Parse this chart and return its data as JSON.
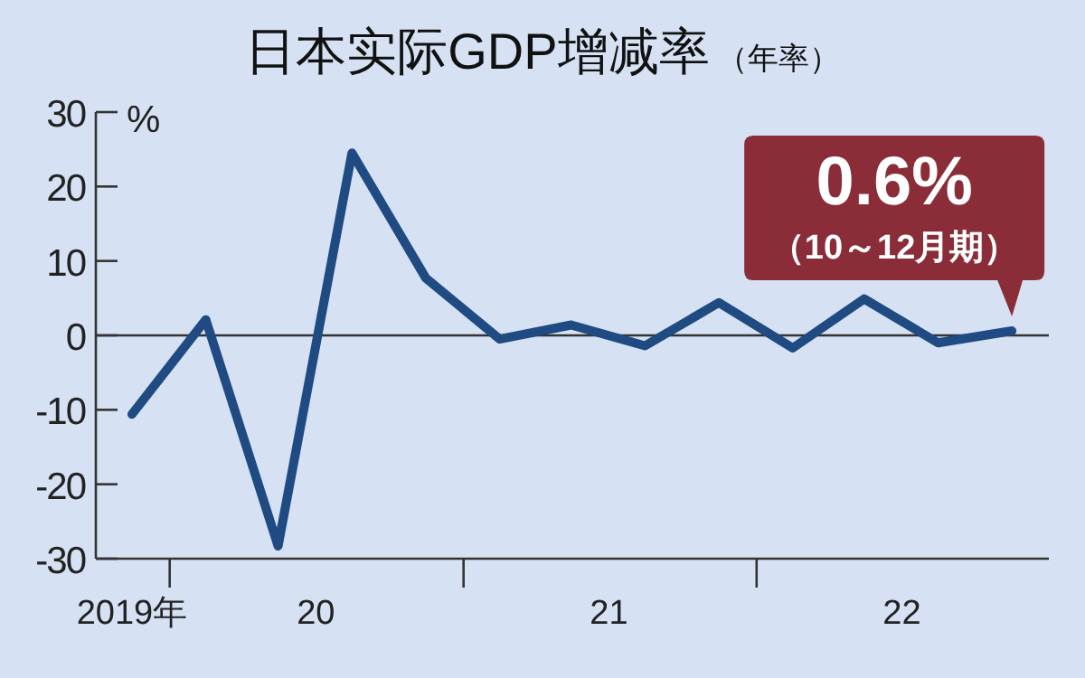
{
  "chart_data": {
    "type": "line",
    "title": "日本实际GDP增减率",
    "subtitle": "（年率）",
    "ylabel": "%",
    "x": [
      "2019-11-15",
      "2020-02-15",
      "2020-05-15",
      "2020-08-15",
      "2020-11-15",
      "2021-02-15",
      "2021-05-15",
      "2021-08-15",
      "2021-11-15",
      "2022-02-15",
      "2022-05-15",
      "2022-08-15",
      "2022-11-15"
    ],
    "series": [
      {
        "color": "#1f4b82",
        "values": [
          -10.6,
          2.1,
          -28.3,
          24.5,
          7.7,
          -0.5,
          1.4,
          -1.4,
          4.4,
          -1.7,
          4.9,
          -1.0,
          0.6
        ]
      }
    ],
    "xlim": [
      "2019-10-01",
      "2022-12-31"
    ],
    "xticks": [
      {
        "value": "2019-11-15",
        "label": "2019年"
      },
      {
        "value": "2020-01-01",
        "label": null
      },
      {
        "value": "2020-07-01",
        "label": "20"
      },
      {
        "value": "2021-01-01",
        "label": null
      },
      {
        "value": "2021-07-01",
        "label": "21"
      },
      {
        "value": "2022-01-01",
        "label": null
      },
      {
        "value": "2022-07-01",
        "label": "22"
      }
    ],
    "ylim": [
      -30,
      30
    ],
    "yticks": [
      -30,
      -20,
      -10,
      0,
      10,
      20,
      30
    ],
    "ref_lines": [
      {
        "axis": "y",
        "value": 0,
        "color": "#333333"
      }
    ],
    "annotations": [
      {
        "text": "0.6%",
        "x": "2022-11-15",
        "y": 0.6
      },
      "（10～12月期）"
    ],
    "grid": false,
    "marker": "none",
    "line_style": "solid"
  }
}
